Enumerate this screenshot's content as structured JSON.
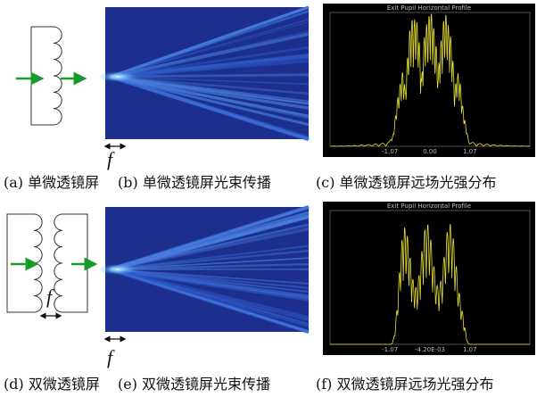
{
  "figure": {
    "panels": [
      {
        "caption": "(a) 单微透镜屏"
      },
      {
        "caption": "(b) 单微透镜屏光束传播"
      },
      {
        "caption": "(c) 单微透镜屏远场光强分布"
      },
      {
        "caption": "(d) 双微透镜屏"
      },
      {
        "caption": "(e) 双微透镜屏光束传播"
      },
      {
        "caption": "(f) 双微透镜屏远场光强分布"
      }
    ],
    "focal_label": "f",
    "plot_title": "Exit Pupil Horizontal Profile",
    "plots": [
      {
        "ticks": [
          "-1.07",
          "0.00",
          "1.07"
        ]
      },
      {
        "ticks": [
          "-1.07",
          "-4.20E-03",
          "1.07"
        ]
      }
    ]
  }
}
